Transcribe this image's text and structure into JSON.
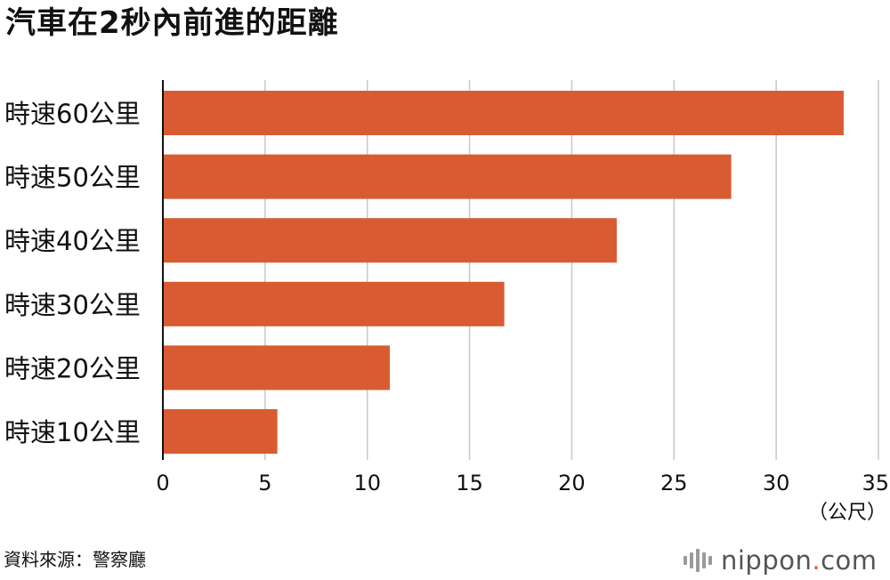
{
  "title": "汽車在2秒內前進的距離",
  "source": "資料來源：警察廳",
  "logo": {
    "name": "nippon",
    "dot": ".",
    "tld": "com"
  },
  "colors": {
    "bar": "#d95b32",
    "grid": "#c8c8c8",
    "axis": "#111111",
    "text": "#111111"
  },
  "chart_data": {
    "type": "bar",
    "orientation": "horizontal",
    "title": "汽車在2秒內前進的距離",
    "categories": [
      "時速60公里",
      "時速50公里",
      "時速40公里",
      "時速30公里",
      "時速20公里",
      "時速10公里"
    ],
    "values": [
      33.3,
      27.8,
      22.2,
      16.7,
      11.1,
      5.6
    ],
    "xlim": [
      0,
      35
    ],
    "xticks": [
      0,
      5,
      10,
      15,
      20,
      25,
      30,
      35
    ],
    "unit_label": "（公尺）",
    "grid": true,
    "legend": "none"
  }
}
